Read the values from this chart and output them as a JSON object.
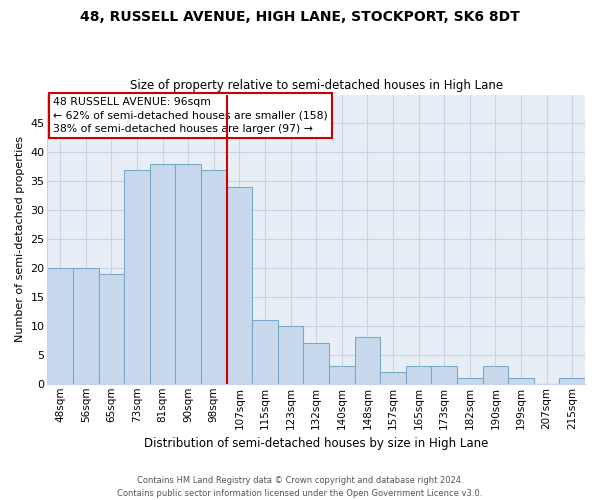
{
  "title": "48, RUSSELL AVENUE, HIGH LANE, STOCKPORT, SK6 8DT",
  "subtitle": "Size of property relative to semi-detached houses in High Lane",
  "xlabel": "Distribution of semi-detached houses by size in High Lane",
  "ylabel": "Number of semi-detached properties",
  "categories": [
    "48sqm",
    "56sqm",
    "65sqm",
    "73sqm",
    "81sqm",
    "90sqm",
    "98sqm",
    "107sqm",
    "115sqm",
    "123sqm",
    "132sqm",
    "140sqm",
    "148sqm",
    "157sqm",
    "165sqm",
    "173sqm",
    "182sqm",
    "190sqm",
    "199sqm",
    "207sqm",
    "215sqm"
  ],
  "values": [
    20,
    20,
    19,
    37,
    38,
    38,
    37,
    34,
    11,
    10,
    7,
    3,
    8,
    2,
    3,
    3,
    1,
    3,
    1,
    0,
    1
  ],
  "bar_color": "#c9d9ed",
  "bar_edge_color": "#7aaac8",
  "vline_x_index": 6,
  "vline_color": "#cc0000",
  "annotation_title": "48 RUSSELL AVENUE: 96sqm",
  "annotation_line1": "← 62% of semi-detached houses are smaller (158)",
  "annotation_line2": "38% of semi-detached houses are larger (97) →",
  "annotation_box_color": "#cc0000",
  "ylim": [
    0,
    50
  ],
  "yticks": [
    0,
    5,
    10,
    15,
    20,
    25,
    30,
    35,
    40,
    45
  ],
  "grid_color": "#c8d4e4",
  "background_color": "#e8eef6",
  "footnote1": "Contains HM Land Registry data © Crown copyright and database right 2024.",
  "footnote2": "Contains public sector information licensed under the Open Government Licence v3.0."
}
